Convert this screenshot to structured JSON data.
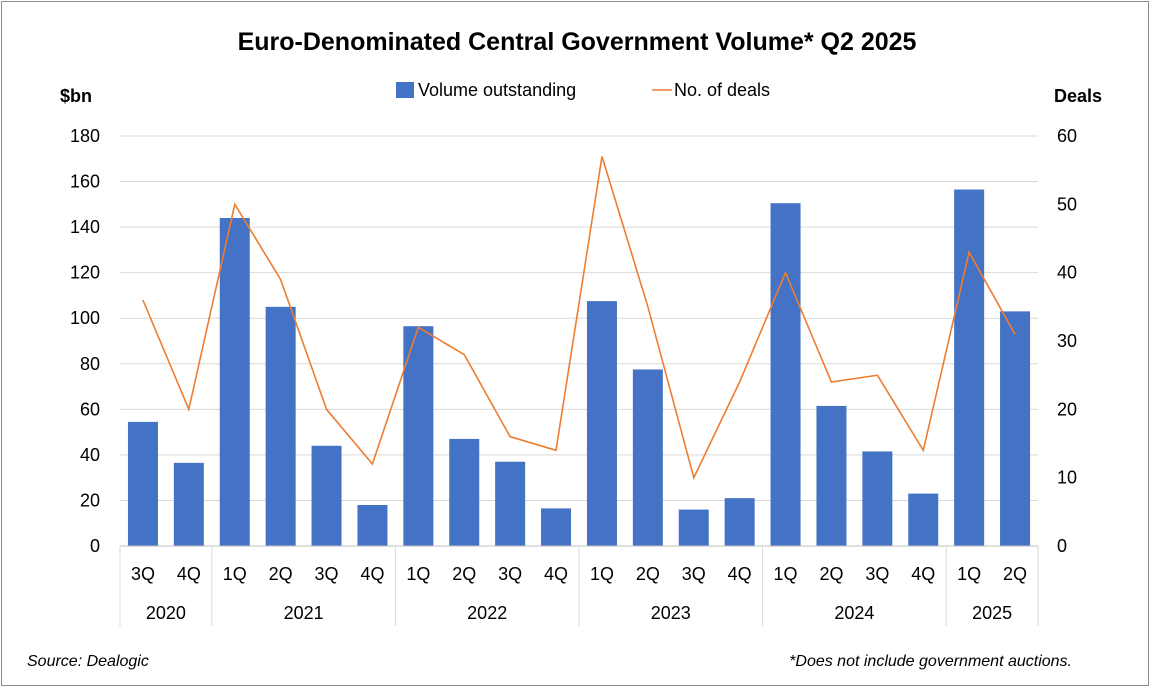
{
  "chart_data": {
    "type": "bar+line",
    "title": "Euro-Denominated Central Government Volume* Q2 2025",
    "y_left_label": "$bn",
    "y_right_label": "Deals",
    "ylim_left": [
      0,
      180
    ],
    "ylim_right": [
      0,
      60
    ],
    "y_left_ticks": [
      "0",
      "20",
      "40",
      "60",
      "80",
      "100",
      "120",
      "140",
      "160",
      "180"
    ],
    "y_right_ticks": [
      "0",
      "10",
      "20",
      "30",
      "40",
      "50",
      "60"
    ],
    "quarters": [
      "3Q",
      "4Q",
      "1Q",
      "2Q",
      "3Q",
      "4Q",
      "1Q",
      "2Q",
      "3Q",
      "4Q",
      "1Q",
      "2Q",
      "3Q",
      "4Q",
      "1Q",
      "2Q",
      "3Q",
      "4Q",
      "1Q",
      "2Q"
    ],
    "years": [
      {
        "label": "2020",
        "count": 2
      },
      {
        "label": "2021",
        "count": 4
      },
      {
        "label": "2022",
        "count": 4
      },
      {
        "label": "2023",
        "count": 4
      },
      {
        "label": "2024",
        "count": 4
      },
      {
        "label": "2025",
        "count": 2
      }
    ],
    "series": [
      {
        "name": "Volume outstanding",
        "type": "bar",
        "axis": "left",
        "color": "#4472C4",
        "values": [
          54.5,
          36.5,
          144,
          105,
          44,
          18,
          96.5,
          47,
          37,
          16.5,
          107.5,
          77.5,
          16,
          21,
          150.5,
          61.5,
          41.5,
          23,
          156.5,
          103
        ]
      },
      {
        "name": "No. of deals",
        "type": "line",
        "axis": "right",
        "color": "#ED7D31",
        "values": [
          36,
          20,
          50,
          39,
          20,
          12,
          32,
          28,
          16,
          14,
          57,
          35,
          10,
          24,
          40,
          24,
          25,
          14,
          43,
          31
        ]
      }
    ],
    "grid": true,
    "legend": "top-center"
  },
  "footer": {
    "source": "Source: Dealogic",
    "note": "*Does not include government auctions."
  }
}
